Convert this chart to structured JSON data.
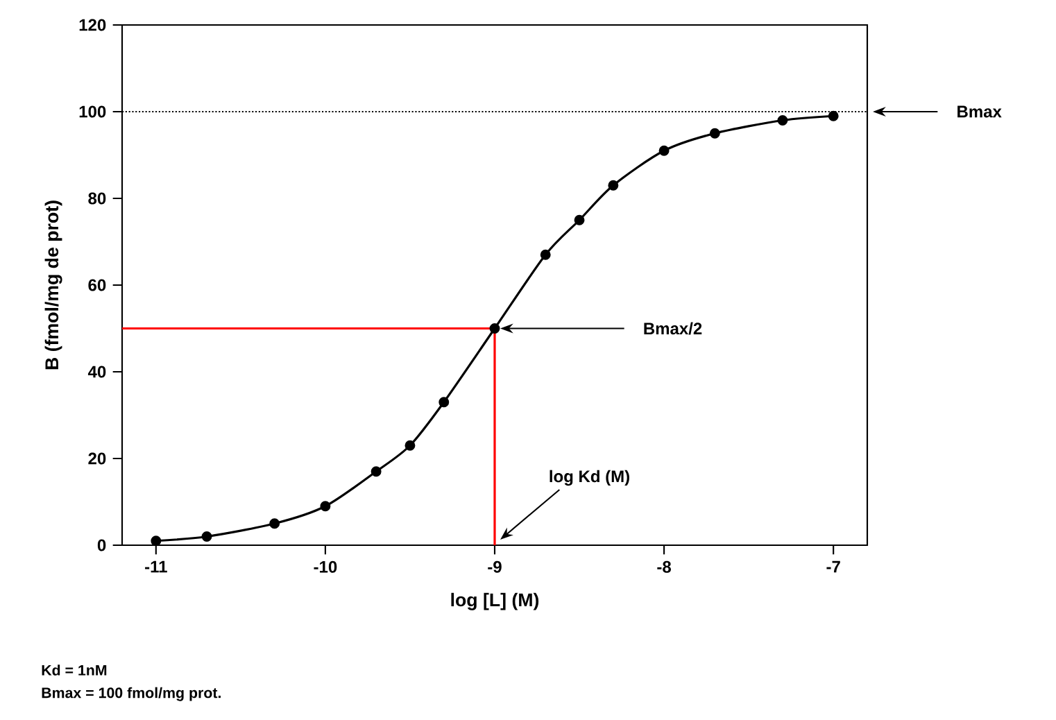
{
  "chart_data": {
    "type": "line",
    "xlabel": "log [L] (M)",
    "ylabel": "B (fmol/mg de prot)",
    "xlim": [
      -11.2,
      -6.8
    ],
    "ylim": [
      0,
      120
    ],
    "xticks": [
      -11,
      -10,
      -9,
      -8,
      -7
    ],
    "yticks": [
      0,
      20,
      40,
      60,
      80,
      100,
      120
    ],
    "series": [
      {
        "color": "#000000",
        "marker": "circle",
        "line_style": "solid",
        "x": [
          -11,
          -10.7,
          -10.3,
          -10,
          -9.7,
          -9.5,
          -9.3,
          -9,
          -8.7,
          -8.5,
          -8.3,
          -8,
          -7.7,
          -7.3,
          -7
        ],
        "values": [
          1,
          2,
          5,
          9,
          17,
          23,
          33,
          50,
          67,
          75,
          83,
          91,
          95,
          98,
          99
        ]
      },
      {
        "type": "line",
        "color": "#ff0000",
        "marker": "none",
        "line_style": "solid",
        "x": [
          -11.2,
          -9,
          -9
        ],
        "values": [
          50,
          50,
          0
        ]
      }
    ],
    "ref_lines": [
      {
        "axis": "y",
        "value": 100,
        "color": "#000000",
        "line_style": "dotted"
      }
    ],
    "annotations": [
      "Bmax",
      "Bmax/2",
      "log Kd (M)",
      "Kd = 1nM",
      "Bmax =  100 fmol/mg prot."
    ],
    "grid": false
  }
}
